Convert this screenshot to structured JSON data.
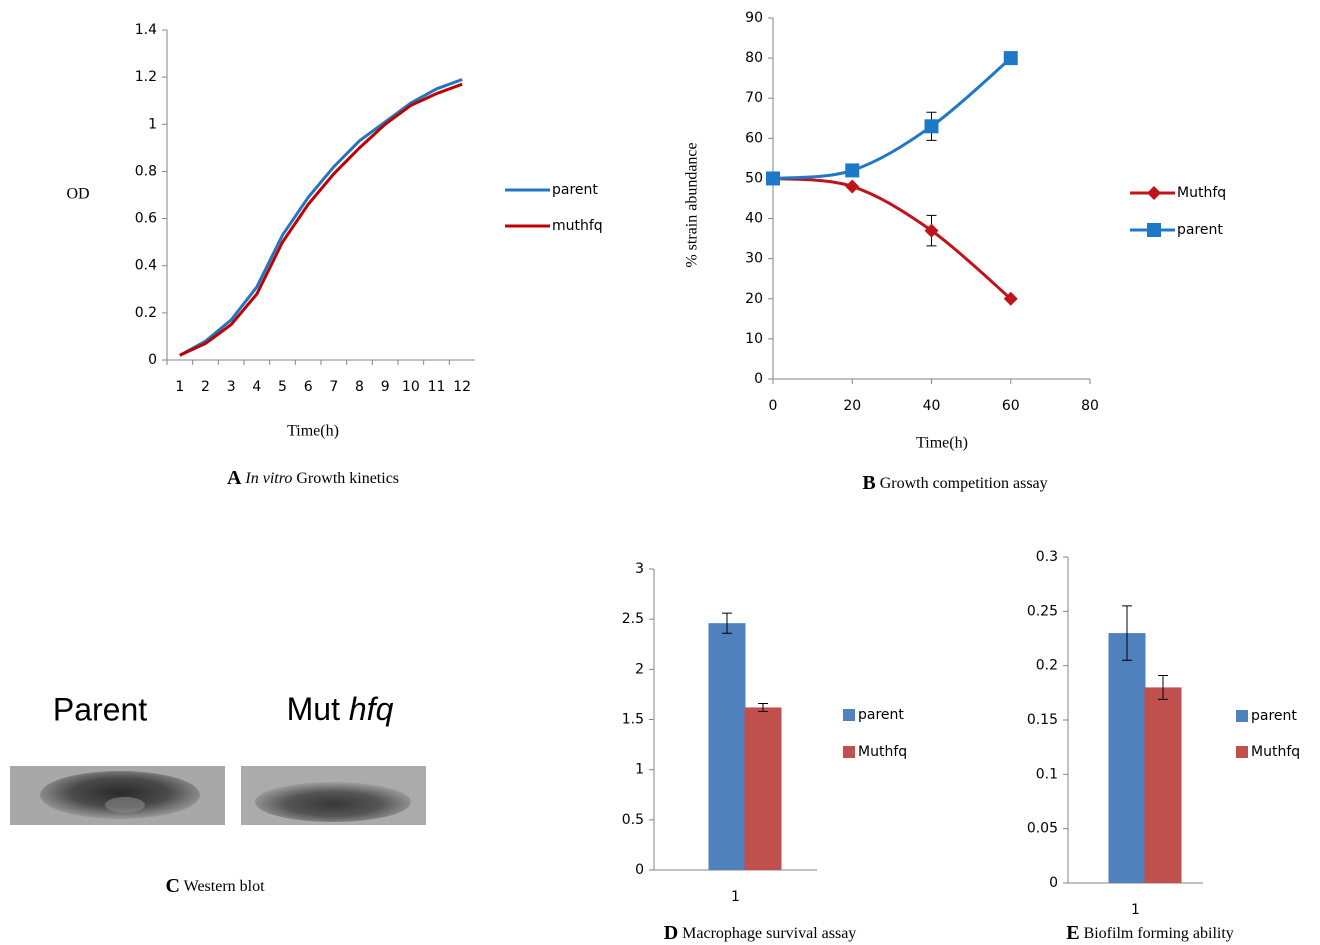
{
  "chart_data": [
    {
      "type": "line",
      "panel": "A",
      "caption_italic": "In vitro",
      "caption": "Growth kinetics",
      "y_label": "OD",
      "x_label": "Time(h)",
      "categories": [
        "1",
        "2",
        "3",
        "4",
        "5",
        "6",
        "7",
        "8",
        "9",
        "10",
        "11",
        "12"
      ],
      "series": [
        {
          "name": "parent",
          "color": "#2176c1",
          "values": [
            0.02,
            0.08,
            0.17,
            0.31,
            0.53,
            0.69,
            0.82,
            0.93,
            1.01,
            1.09,
            1.15,
            1.19
          ]
        },
        {
          "name": "muthfq",
          "color": "#c00000",
          "values": [
            0.02,
            0.07,
            0.15,
            0.28,
            0.5,
            0.66,
            0.79,
            0.9,
            1.0,
            1.08,
            1.13,
            1.17
          ]
        }
      ],
      "ylim": [
        0,
        1.4
      ],
      "yticks": [
        0,
        0.2,
        0.4,
        0.6,
        0.8,
        1,
        1.2,
        1.4
      ],
      "legend": "right"
    },
    {
      "type": "line",
      "panel": "B",
      "caption": "Growth competition assay",
      "y_label": "% strain abundance",
      "x_label": "Time(h)",
      "x": [
        0,
        20,
        40,
        60
      ],
      "series": [
        {
          "name": "Muthfq",
          "color": "#c0141a",
          "marker": "diamond",
          "values": [
            50,
            48,
            37,
            20
          ],
          "errors": [
            0,
            0,
            3.8,
            0
          ]
        },
        {
          "name": "parent",
          "color": "#1e78c8",
          "marker": "square",
          "values": [
            50,
            52,
            63,
            80
          ],
          "errors": [
            0,
            0,
            3.5,
            0
          ]
        }
      ],
      "xlim": [
        0,
        80
      ],
      "xticks": [
        0,
        20,
        40,
        60,
        80
      ],
      "ylim": [
        0,
        90
      ],
      "yticks": [
        0,
        10,
        20,
        30,
        40,
        50,
        60,
        70,
        80,
        90
      ],
      "legend": "right"
    },
    {
      "type": "bar",
      "panel": "D",
      "caption": "Macrophage survival assay",
      "categories": [
        "1"
      ],
      "series": [
        {
          "name": "parent",
          "color": "#4f81bd",
          "values": [
            2.46
          ],
          "errors": [
            0.1
          ]
        },
        {
          "name": "Muthfq",
          "color": "#c0504d",
          "values": [
            1.62
          ],
          "errors": [
            0.04
          ]
        }
      ],
      "ylim": [
        0,
        3
      ],
      "yticks": [
        0,
        0.5,
        1,
        1.5,
        2,
        2.5,
        3
      ],
      "legend": "right"
    },
    {
      "type": "bar",
      "panel": "E",
      "caption": "Biofilm forming ability",
      "categories": [
        "1"
      ],
      "series": [
        {
          "name": "parent",
          "color": "#4f81bd",
          "values": [
            0.23
          ],
          "errors": [
            0.025
          ]
        },
        {
          "name": "Muthfq",
          "color": "#c0504d",
          "values": [
            0.18
          ],
          "errors": [
            0.011
          ]
        }
      ],
      "ylim": [
        0,
        0.3
      ],
      "yticks": [
        0,
        0.05,
        0.1,
        0.15,
        0.2,
        0.25,
        0.3
      ],
      "legend": "right"
    }
  ],
  "western_blot": {
    "panel": "C",
    "caption": "Western blot",
    "lanes": [
      {
        "label": "Parent"
      },
      {
        "label": "Mut",
        "label_italic": "hfq"
      }
    ]
  }
}
